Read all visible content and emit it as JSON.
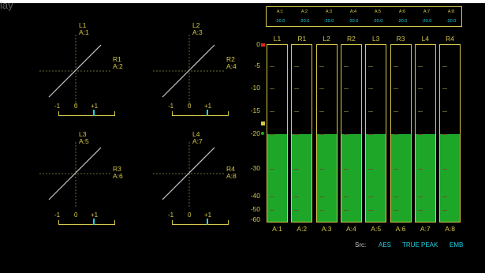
{
  "window": {
    "title": "lay"
  },
  "lissajous": [
    {
      "label_top": "L1",
      "source_top": "A:1",
      "label_right": "R1",
      "source_right": "A:2",
      "scale": {
        "min": "-1",
        "mid": "0",
        "max": "+1"
      },
      "correlation": 1.0
    },
    {
      "label_top": "L2",
      "source_top": "A:3",
      "label_right": "R2",
      "source_right": "A:4",
      "scale": {
        "min": "-1",
        "mid": "0",
        "max": "+1"
      },
      "correlation": 1.0
    },
    {
      "label_top": "L3",
      "source_top": "A:5",
      "label_right": "R3",
      "source_right": "A:6",
      "scale": {
        "min": "-1",
        "mid": "0",
        "max": "+1"
      },
      "correlation": 1.0
    },
    {
      "label_top": "L4",
      "source_top": "A:7",
      "label_right": "R4",
      "source_right": "A:8",
      "scale": {
        "min": "-1",
        "mid": "0",
        "max": "+1"
      },
      "correlation": 1.0
    }
  ],
  "channel_table": [
    {
      "name": "A:1",
      "value": "-20.0"
    },
    {
      "name": "A:2",
      "value": "-20.0"
    },
    {
      "name": "A:3",
      "value": "-20.0"
    },
    {
      "name": "A:4",
      "value": "-20.0"
    },
    {
      "name": "A:5",
      "value": "-20.0"
    },
    {
      "name": "A:6",
      "value": "-20.0"
    },
    {
      "name": "A:7",
      "value": "-20.0"
    },
    {
      "name": "A:8",
      "value": "-20.0"
    }
  ],
  "scale": [
    "0",
    "-5",
    "-10",
    "-15",
    "-20",
    "-30",
    "-40",
    "-50",
    "-60"
  ],
  "meters": [
    {
      "label": "L1",
      "source": "A:1",
      "level_db": -20
    },
    {
      "label": "R1",
      "source": "A:2",
      "level_db": -20
    },
    {
      "label": "L2",
      "source": "A:3",
      "level_db": -20
    },
    {
      "label": "R2",
      "source": "A:4",
      "level_db": -20
    },
    {
      "label": "L3",
      "source": "A:5",
      "level_db": -20
    },
    {
      "label": "R3",
      "source": "A:6",
      "level_db": -20
    },
    {
      "label": "L4",
      "source": "A:7",
      "level_db": -20
    },
    {
      "label": "R4",
      "source": "A:8",
      "level_db": -20
    }
  ],
  "status": {
    "src_label": "Src:",
    "format": "AES",
    "mode": "TRUE PEAK",
    "input": "EMB"
  },
  "colors": {
    "label": "#d6c84a",
    "value": "#1fd3e3",
    "fill": "#1ea629",
    "peak": "#e02a1a"
  }
}
